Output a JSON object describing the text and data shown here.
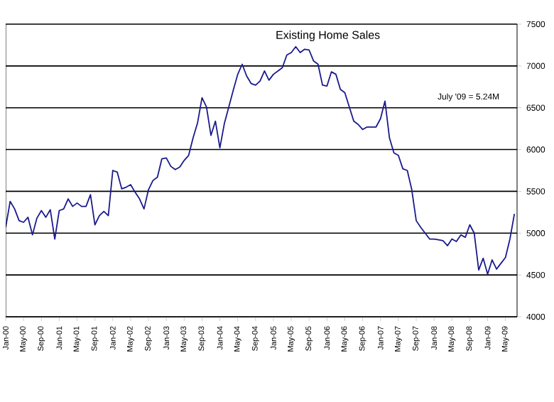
{
  "chart_data": {
    "type": "line",
    "title": "Existing Home Sales",
    "annotations": [
      "July '09 = 5.24M"
    ],
    "categories": [
      "Jan-00",
      null,
      null,
      null,
      "May-00",
      null,
      null,
      null,
      "Sep-00",
      null,
      null,
      null,
      "Jan-01",
      null,
      null,
      null,
      "May-01",
      null,
      null,
      null,
      "Sep-01",
      null,
      null,
      null,
      "Jan-02",
      null,
      null,
      null,
      "May-02",
      null,
      null,
      null,
      "Sep-02",
      null,
      null,
      null,
      "Jan-03",
      null,
      null,
      null,
      "May-03",
      null,
      null,
      null,
      "Sep-03",
      null,
      null,
      null,
      "Jan-04",
      null,
      null,
      null,
      "May-04",
      null,
      null,
      null,
      "Sep-04",
      null,
      null,
      null,
      "Jan-05",
      null,
      null,
      null,
      "May-05",
      null,
      null,
      null,
      "Sep-05",
      null,
      null,
      null,
      "Jan-06",
      null,
      null,
      null,
      "May-06",
      null,
      null,
      null,
      "Sep-06",
      null,
      null,
      null,
      "Jan-07",
      null,
      null,
      null,
      "May-07",
      null,
      null,
      null,
      "Sep-07",
      null,
      null,
      null,
      "Jan-08",
      null,
      null,
      null,
      "May-08",
      null,
      null,
      null,
      "Sep-08",
      null,
      null,
      null,
      "Jan-09",
      null,
      null,
      null,
      "May-09",
      null,
      null
    ],
    "values": [
      5070,
      5380,
      5290,
      5150,
      5130,
      5190,
      4980,
      5180,
      5270,
      5190,
      5280,
      4930,
      5270,
      5290,
      5410,
      5320,
      5360,
      5320,
      5320,
      5460,
      5100,
      5210,
      5260,
      5210,
      5750,
      5730,
      5530,
      5550,
      5580,
      5490,
      5410,
      5290,
      5520,
      5630,
      5670,
      5890,
      5900,
      5800,
      5760,
      5790,
      5870,
      5930,
      6140,
      6320,
      6620,
      6510,
      6170,
      6340,
      6020,
      6310,
      6510,
      6710,
      6900,
      7020,
      6880,
      6790,
      6770,
      6820,
      6940,
      6830,
      6900,
      6940,
      6980,
      7130,
      7160,
      7230,
      7160,
      7200,
      7190,
      7060,
      7020,
      6770,
      6760,
      6930,
      6900,
      6720,
      6680,
      6510,
      6340,
      6300,
      6240,
      6270,
      6270,
      6270,
      6370,
      6580,
      6140,
      5960,
      5930,
      5770,
      5750,
      5520,
      5150,
      5070,
      5000,
      4930,
      4930,
      4920,
      4910,
      4850,
      4930,
      4900,
      4980,
      4950,
      5100,
      5000,
      4560,
      4700,
      4510,
      4680,
      4570,
      4640,
      4710,
      4930,
      5230
    ],
    "color": "#1a1a8c",
    "ylim": [
      4000,
      7500
    ],
    "yticks": [
      4000,
      4500,
      5000,
      5500,
      6000,
      6500,
      7000,
      7500
    ],
    "grid": "y"
  }
}
